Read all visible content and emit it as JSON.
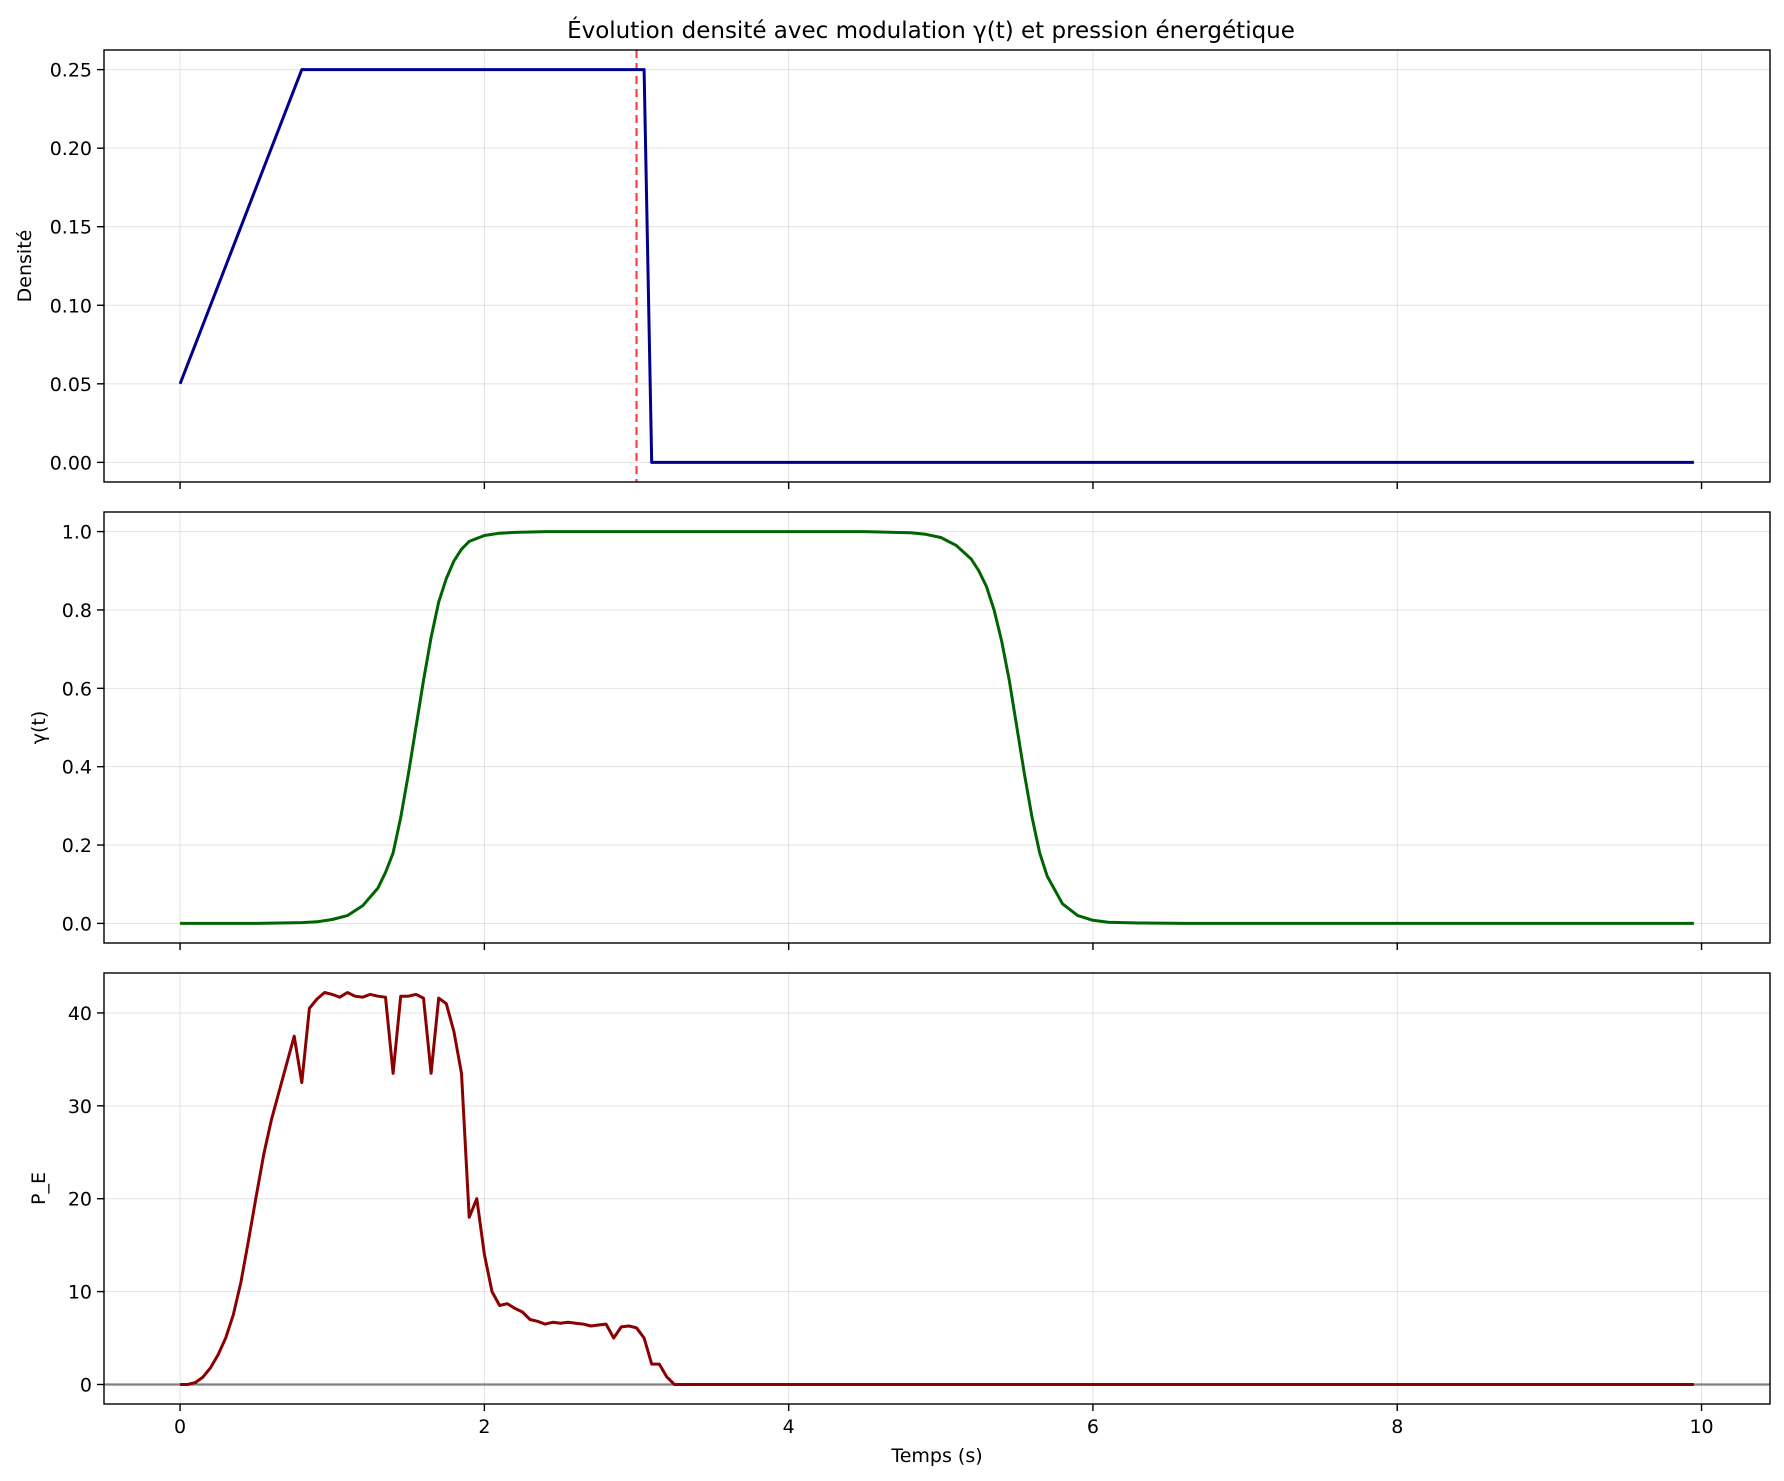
{
  "chart_data": [
    {
      "type": "line",
      "title": "Évolution densité avec modulation γ(t) et pression énergétique",
      "xlabel": "",
      "ylabel": "Densité",
      "xlim": [
        -0.5,
        10.45
      ],
      "ylim": [
        -0.0125,
        0.2625
      ],
      "xticks": [
        0,
        2,
        4,
        6,
        8,
        10
      ],
      "xticklabels": [],
      "yticks": [
        0.0,
        0.05,
        0.1,
        0.15,
        0.2,
        0.25
      ],
      "yticklabels": [
        "0.00",
        "0.05",
        "0.10",
        "0.15",
        "0.20",
        "0.25"
      ],
      "grid": true,
      "vlines": [
        {
          "x": 3.0,
          "color": "#ff0000",
          "style": "dashed"
        }
      ],
      "series": [
        {
          "color": "#00008b",
          "x": [
            0,
            0.8,
            3.05,
            3.1,
            9.95
          ],
          "y": [
            0.05,
            0.25,
            0.25,
            0.0,
            0.0
          ]
        }
      ]
    },
    {
      "type": "line",
      "title": "",
      "xlabel": "",
      "ylabel": "γ(t)",
      "xlim": [
        -0.5,
        10.45
      ],
      "ylim": [
        -0.05,
        1.05
      ],
      "xticks": [
        0,
        2,
        4,
        6,
        8,
        10
      ],
      "xticklabels": [],
      "yticks": [
        0.0,
        0.2,
        0.4,
        0.6,
        0.8,
        1.0
      ],
      "yticklabels": [
        "0.0",
        "0.2",
        "0.4",
        "0.6",
        "0.8",
        "1.0"
      ],
      "grid": true,
      "series": [
        {
          "color": "#006400",
          "x": [
            0,
            0.5,
            0.8,
            0.9,
            1.0,
            1.1,
            1.2,
            1.3,
            1.35,
            1.4,
            1.45,
            1.5,
            1.55,
            1.6,
            1.65,
            1.7,
            1.75,
            1.8,
            1.85,
            1.9,
            2.0,
            2.1,
            2.2,
            2.4,
            2.6,
            4.5,
            4.8,
            4.9,
            5.0,
            5.1,
            5.2,
            5.25,
            5.3,
            5.35,
            5.4,
            5.45,
            5.5,
            5.55,
            5.6,
            5.65,
            5.7,
            5.8,
            5.9,
            6.0,
            6.1,
            6.3,
            6.6,
            9.95
          ],
          "y": [
            0.0,
            0.0,
            0.002,
            0.004,
            0.01,
            0.02,
            0.045,
            0.09,
            0.13,
            0.18,
            0.27,
            0.38,
            0.5,
            0.62,
            0.73,
            0.82,
            0.88,
            0.925,
            0.955,
            0.975,
            0.99,
            0.996,
            0.998,
            1.0,
            1.0,
            1.0,
            0.997,
            0.993,
            0.985,
            0.965,
            0.93,
            0.9,
            0.86,
            0.8,
            0.72,
            0.62,
            0.5,
            0.38,
            0.27,
            0.18,
            0.12,
            0.05,
            0.02,
            0.008,
            0.003,
            0.001,
            0.0,
            0.0
          ]
        }
      ]
    },
    {
      "type": "line",
      "title": "",
      "xlabel": "Temps (s)",
      "ylabel": "P_E",
      "xlim": [
        -0.5,
        10.45
      ],
      "ylim": [
        -2.1,
        44.3
      ],
      "xticks": [
        0,
        2,
        4,
        6,
        8,
        10
      ],
      "xticklabels": [
        "0",
        "2",
        "4",
        "6",
        "8",
        "10"
      ],
      "yticks": [
        0,
        10,
        20,
        30,
        40
      ],
      "yticklabels": [
        "0",
        "10",
        "20",
        "30",
        "40"
      ],
      "grid": true,
      "hlines": [
        {
          "y": 0,
          "color": "#808080"
        }
      ],
      "series": [
        {
          "color": "#8b0000",
          "x": [
            0,
            0.05,
            0.1,
            0.15,
            0.2,
            0.25,
            0.3,
            0.35,
            0.4,
            0.45,
            0.5,
            0.55,
            0.6,
            0.65,
            0.7,
            0.75,
            0.8,
            0.85,
            0.9,
            0.95,
            1.0,
            1.05,
            1.1,
            1.15,
            1.2,
            1.25,
            1.3,
            1.35,
            1.4,
            1.45,
            1.5,
            1.55,
            1.6,
            1.65,
            1.7,
            1.75,
            1.8,
            1.85,
            1.9,
            1.95,
            2.0,
            2.05,
            2.1,
            2.15,
            2.2,
            2.25,
            2.3,
            2.35,
            2.4,
            2.45,
            2.5,
            2.55,
            2.6,
            2.65,
            2.7,
            2.75,
            2.8,
            2.85,
            2.9,
            2.95,
            3.0,
            3.05,
            3.1,
            3.15,
            3.2,
            3.25,
            3.3,
            3.35,
            9.95
          ],
          "y": [
            0.0,
            0.0,
            0.2,
            0.8,
            1.8,
            3.2,
            5.0,
            7.5,
            11.0,
            15.5,
            20.2,
            24.8,
            28.5,
            31.5,
            34.5,
            37.5,
            32.5,
            40.5,
            41.5,
            42.2,
            42.0,
            41.7,
            42.2,
            41.8,
            41.7,
            42.0,
            41.8,
            41.7,
            33.5,
            41.8,
            41.8,
            42.0,
            41.6,
            33.5,
            41.6,
            41.0,
            38.0,
            33.5,
            18.0,
            20.0,
            14.0,
            10.0,
            8.5,
            8.7,
            8.2,
            7.8,
            7.0,
            6.8,
            6.5,
            6.7,
            6.6,
            6.7,
            6.6,
            6.5,
            6.3,
            6.4,
            6.5,
            5.0,
            6.2,
            6.3,
            6.1,
            5.0,
            2.2,
            2.2,
            0.8,
            0.0,
            0.0,
            0.0,
            0.0
          ]
        }
      ]
    }
  ]
}
